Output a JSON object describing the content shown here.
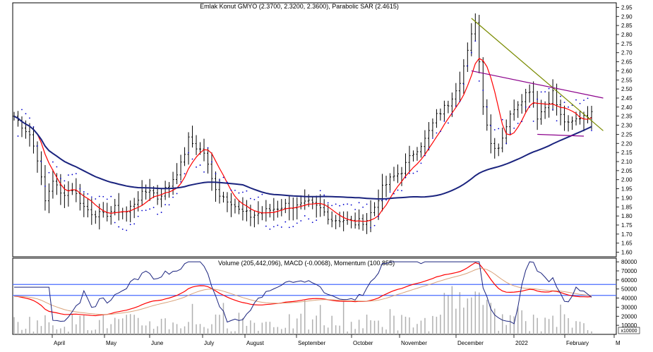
{
  "upper_title": "Emlak Konut GMYO (2.3700, 2.3200, 2.3600), Parabolic SAR (2.4615)",
  "lower_title": "Volume (205,442,096), MACD (-0.0068), Momentum (100.855)",
  "volume_unit": "x10000",
  "x_months": [
    "April",
    "May",
    "June",
    "July",
    "August",
    "September",
    "October",
    "November",
    "December",
    "2022",
    "February",
    "M"
  ],
  "colors": {
    "price_bars": "#000000",
    "sma_short": "#ff0000",
    "sma_long": "#1a237e",
    "sar": "#0000cc",
    "trend_down": "#7a8b00",
    "trend_channel": "#8b008b",
    "trend_support": "#8b008b",
    "volume_bars": "#b0b0b0",
    "macd": "#ff0000",
    "macd_signal": "#d9a27a",
    "momentum": "#1a237e",
    "hlines": "#4a6bff"
  },
  "chart_data": [
    {
      "type": "line",
      "title": "Emlak Konut GMYO (2.3700, 2.3200, 2.3600), Parabolic SAR (2.4615)",
      "subtype": "ohlc",
      "ylim": [
        1.575,
        2.975
      ],
      "y_ticks": [
        1.6,
        1.65,
        1.7,
        1.75,
        1.8,
        1.85,
        1.9,
        1.95,
        2.0,
        2.05,
        2.1,
        2.15,
        2.2,
        2.25,
        2.3,
        2.35,
        2.4,
        2.45,
        2.5,
        2.55,
        2.6,
        2.65,
        2.7,
        2.75,
        2.8,
        2.85,
        2.9,
        2.95
      ],
      "x_ticks": [
        "April",
        "May",
        "June",
        "July",
        "August",
        "September",
        "October",
        "November",
        "December",
        "2022",
        "February",
        "M"
      ],
      "grid": false,
      "close_keyframes": [
        [
          0,
          2.35
        ],
        [
          4,
          2.25
        ],
        [
          6,
          2.12
        ],
        [
          8,
          1.88
        ],
        [
          10,
          2.0
        ],
        [
          12,
          1.92
        ],
        [
          15,
          1.95
        ],
        [
          18,
          1.85
        ],
        [
          20,
          1.82
        ],
        [
          23,
          1.8
        ],
        [
          26,
          1.84
        ],
        [
          29,
          1.82
        ],
        [
          32,
          1.9
        ],
        [
          35,
          1.95
        ],
        [
          37,
          1.9
        ],
        [
          40,
          1.97
        ],
        [
          43,
          2.08
        ],
        [
          45,
          2.22
        ],
        [
          47,
          2.18
        ],
        [
          49,
          2.15
        ],
        [
          51,
          2.0
        ],
        [
          53,
          1.92
        ],
        [
          56,
          1.88
        ],
        [
          58,
          1.83
        ],
        [
          61,
          1.8
        ],
        [
          64,
          1.82
        ],
        [
          67,
          1.84
        ],
        [
          70,
          1.86
        ],
        [
          73,
          1.85
        ],
        [
          76,
          1.87
        ],
        [
          79,
          1.84
        ],
        [
          82,
          1.78
        ],
        [
          85,
          1.78
        ],
        [
          88,
          1.76
        ],
        [
          91,
          1.78
        ],
        [
          93,
          1.85
        ],
        [
          95,
          1.95
        ],
        [
          97,
          2.0
        ],
        [
          100,
          2.05
        ],
        [
          103,
          2.15
        ],
        [
          106,
          2.22
        ],
        [
          109,
          2.35
        ],
        [
          112,
          2.42
        ],
        [
          115,
          2.55
        ],
        [
          117,
          2.7
        ],
        [
          119,
          2.88
        ],
        [
          121,
          2.42
        ],
        [
          123,
          2.2
        ],
        [
          125,
          2.18
        ],
        [
          127,
          2.3
        ],
        [
          129,
          2.4
        ],
        [
          131,
          2.45
        ],
        [
          133,
          2.5
        ],
        [
          135,
          2.35
        ],
        [
          137,
          2.4
        ],
        [
          139,
          2.48
        ],
        [
          141,
          2.35
        ],
        [
          143,
          2.3
        ],
        [
          145,
          2.33
        ],
        [
          147,
          2.36
        ]
      ],
      "series": [
        {
          "name": "Parabolic SAR",
          "last": 2.4615
        },
        {
          "name": "SMA short",
          "values_from": "close"
        },
        {
          "name": "SMA long",
          "values_from": "close"
        }
      ],
      "trendlines": [
        {
          "points": [
            [
              118,
              2.89
            ],
            [
              152,
              2.27
            ]
          ]
        },
        {
          "points": [
            [
              118,
              2.6
            ],
            [
              152,
              2.45
            ]
          ]
        },
        {
          "points": [
            [
              135,
              2.25
            ],
            [
              147,
              2.24
            ]
          ]
        }
      ]
    },
    {
      "type": "bar",
      "title": "Volume (205,442,096), MACD (-0.0068), Momentum (100.855)",
      "y_ticks": [
        10000,
        20000,
        30000,
        40000,
        50000,
        60000,
        70000,
        80000
      ],
      "ylim": [
        0,
        84000
      ],
      "unit": "x10000",
      "last": {
        "volume": 205442096,
        "macd": -0.0068,
        "momentum": 100.855
      },
      "hlines": [
        43000,
        55000
      ],
      "series": [
        {
          "name": "Volume"
        },
        {
          "name": "MACD"
        },
        {
          "name": "Momentum"
        }
      ]
    }
  ]
}
